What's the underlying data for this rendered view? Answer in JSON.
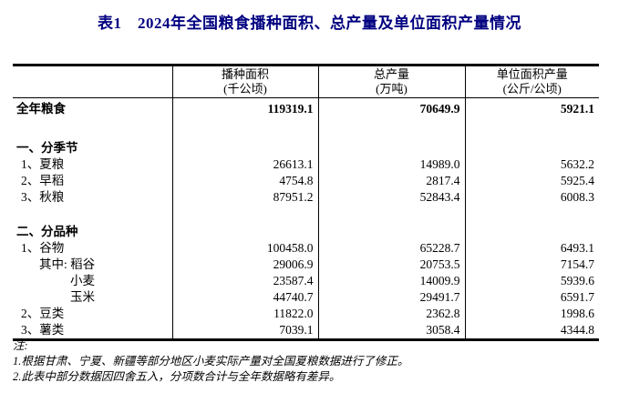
{
  "title": "表1　2024年全国粮食播种面积、总产量及单位面积产量情况",
  "colors": {
    "title_text": "#000080",
    "body_text": "#000000",
    "table_border": "#000000",
    "background": "#ffffff"
  },
  "table": {
    "columns": [
      {
        "label": "",
        "unit": ""
      },
      {
        "label": "播种面积",
        "unit": "(千公顷)"
      },
      {
        "label": "总产量",
        "unit": "(万吨)"
      },
      {
        "label": "单位面积产量",
        "unit": "(公斤/公顷)"
      }
    ],
    "rows": [
      {
        "style": "total",
        "indent": "section",
        "label": "全年粮食",
        "values": [
          "119319.1",
          "70649.9",
          "5921.1"
        ]
      },
      {
        "style": "spacer",
        "height": 14,
        "label": "",
        "values": [
          "",
          "",
          ""
        ]
      },
      {
        "style": "section",
        "indent": "section",
        "label": "一、分季节",
        "values": [
          "",
          "",
          ""
        ]
      },
      {
        "style": "item",
        "indent": "item",
        "label": "1、夏粮",
        "values": [
          "26613.1",
          "14989.0",
          "5632.2"
        ]
      },
      {
        "style": "item",
        "indent": "item",
        "label": "2、早稻",
        "values": [
          "4754.8",
          "2817.4",
          "5925.4"
        ]
      },
      {
        "style": "item",
        "indent": "item",
        "label": "3、秋粮",
        "values": [
          "87951.2",
          "52843.4",
          "6008.3"
        ]
      },
      {
        "style": "spacer",
        "height": 20,
        "label": "",
        "values": [
          "",
          "",
          ""
        ]
      },
      {
        "style": "section",
        "indent": "section",
        "label": "二、分品种",
        "values": [
          "",
          "",
          ""
        ]
      },
      {
        "style": "item",
        "indent": "item",
        "label": "1、谷物",
        "values": [
          "100458.0",
          "65228.7",
          "6493.1"
        ]
      },
      {
        "style": "item",
        "indent": "qizhong",
        "label": "其中: 稻谷",
        "values": [
          "29006.9",
          "20753.5",
          "7154.7"
        ]
      },
      {
        "style": "item",
        "indent": "subitem",
        "label": "小麦",
        "values": [
          "23587.4",
          "14009.9",
          "5939.6"
        ]
      },
      {
        "style": "item",
        "indent": "subitem",
        "label": "玉米",
        "values": [
          "44740.7",
          "29491.7",
          "6591.7"
        ]
      },
      {
        "style": "item",
        "indent": "item",
        "label": "2、豆类",
        "values": [
          "11822.0",
          "2362.8",
          "1998.6"
        ]
      },
      {
        "style": "item",
        "indent": "item",
        "label": "3、薯类",
        "values": [
          "7039.1",
          "3058.4",
          "4344.8"
        ]
      }
    ]
  },
  "notes": {
    "heading": "注:",
    "items": [
      "1.根据甘肃、宁夏、新疆等部分地区小麦实际产量对全国夏粮数据进行了修正。",
      "2.此表中部分数据因四舍五入，分项数合计与全年数据略有差异。"
    ]
  }
}
